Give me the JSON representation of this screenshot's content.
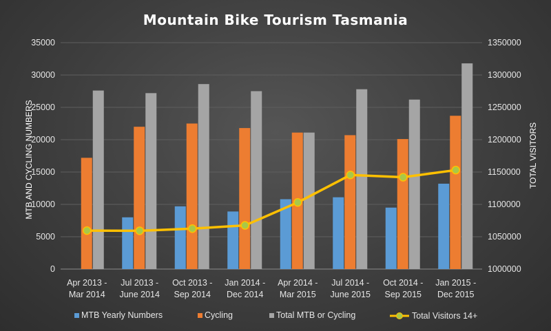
{
  "chart_data": {
    "type": "bar",
    "title": "Mountain Bike Tourism Tasmania",
    "ylabel": "MTB AND CYCLING NUMBERS",
    "y2label": "TOTAL VISITORS",
    "ylim": [
      0,
      35000
    ],
    "yticks": [
      0,
      5000,
      10000,
      15000,
      20000,
      25000,
      30000,
      35000
    ],
    "y2lim": [
      1000000,
      1350000
    ],
    "y2ticks": [
      1000000,
      1050000,
      1100000,
      1150000,
      1200000,
      1250000,
      1300000,
      1350000
    ],
    "grid": true,
    "legend_position": "bottom",
    "categories": [
      [
        "Apr 2013 -",
        "Mar 2014"
      ],
      [
        "Jul 2013 -",
        "June 2014"
      ],
      [
        "Oct 2013 -",
        "Sep 2014"
      ],
      [
        "Jan 2014 -",
        "Dec 2014"
      ],
      [
        "Apr 2014 -",
        "Mar 2015"
      ],
      [
        "Jul 2014 -",
        "June 2015"
      ],
      [
        "Oct 2014 -",
        "Sep 2015"
      ],
      [
        "Jan 2015 -",
        "Dec 2015"
      ]
    ],
    "series": [
      {
        "name": "MTB Yearly Numbers",
        "type": "bar",
        "axis": "left",
        "color": "#5b9bd5",
        "values": [
          null,
          8000,
          9700,
          8900,
          10800,
          11100,
          9500,
          13200
        ]
      },
      {
        "name": "Cycling",
        "type": "bar",
        "axis": "left",
        "color": "#ed7d31",
        "values": [
          17200,
          22000,
          22500,
          21800,
          21100,
          20700,
          20100,
          23700
        ]
      },
      {
        "name": "Total MTB or Cycling",
        "type": "bar",
        "axis": "left",
        "color": "#a5a5a5",
        "values": [
          27600,
          27200,
          28600,
          27500,
          21100,
          27800,
          26200,
          31800
        ]
      },
      {
        "name": "Total Visitors 14+",
        "type": "line",
        "axis": "right",
        "color": "#ffc000",
        "marker_color": "#a9c848",
        "values": [
          1059500,
          1059200,
          1062500,
          1067500,
          1103000,
          1145500,
          1142000,
          1153000
        ]
      }
    ]
  }
}
